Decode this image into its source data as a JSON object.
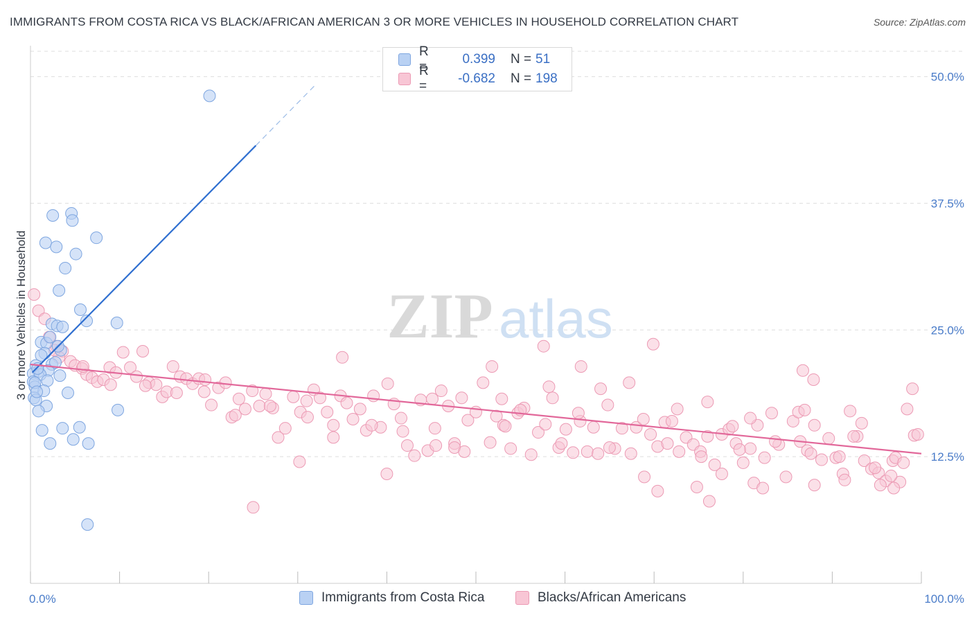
{
  "header": {
    "title": "IMMIGRANTS FROM COSTA RICA VS BLACK/AFRICAN AMERICAN 3 OR MORE VEHICLES IN HOUSEHOLD CORRELATION CHART",
    "source": "Source: ZipAtlas.com"
  },
  "watermark": {
    "zip": "ZIP",
    "atlas": "atlas"
  },
  "legend": {
    "rows": [
      {
        "r_label": "R =",
        "r_value": "0.399",
        "n_label": "N =",
        "n_value": "51"
      },
      {
        "r_label": "R =",
        "r_value": "-0.682",
        "n_label": "N =",
        "n_value": "198"
      }
    ]
  },
  "bottom_legend": {
    "series1": "Immigrants from Costa Rica",
    "series2": "Blacks/African Americans"
  },
  "colors": {
    "blue_fill": "#b9d1f3",
    "blue_stroke": "#7ea6e0",
    "blue_line": "#2f6fd0",
    "pink_fill": "#f8c6d5",
    "pink_stroke": "#ec9ab4",
    "pink_line": "#e2689a",
    "tick_text": "#4a7cc9",
    "grid": "#dddddd"
  },
  "chart_data": {
    "type": "scatter",
    "title": "IMMIGRANTS FROM COSTA RICA VS BLACK/AFRICAN AMERICAN 3 OR MORE VEHICLES IN HOUSEHOLD CORRELATION CHART",
    "xlabel": "",
    "ylabel": "3 or more Vehicles in Household",
    "xlim": [
      0,
      100
    ],
    "ylim": [
      0,
      52.5
    ],
    "x_tick_labels": [
      "0.0%",
      "100.0%"
    ],
    "y_ticks": [
      12.5,
      25.0,
      37.5,
      50.0
    ],
    "y_tick_labels": [
      "12.5%",
      "25.0%",
      "37.5%",
      "50.0%"
    ],
    "grid": true,
    "series": [
      {
        "name": "Immigrants from Costa Rica",
        "R": 0.399,
        "N": 51,
        "trend": {
          "x0": 0.2,
          "y0": 20.8,
          "x1": 25.3,
          "y1": 43.2,
          "dashed_to_x": 32.0,
          "dashed_to_y": 49.2
        },
        "points": [
          [
            20.1,
            48.1
          ],
          [
            2.5,
            36.3
          ],
          [
            4.6,
            36.5
          ],
          [
            4.7,
            35.8
          ],
          [
            7.4,
            34.1
          ],
          [
            1.7,
            33.6
          ],
          [
            2.9,
            33.2
          ],
          [
            5.1,
            32.5
          ],
          [
            3.9,
            31.1
          ],
          [
            3.2,
            28.9
          ],
          [
            5.6,
            27.0
          ],
          [
            6.3,
            25.9
          ],
          [
            9.7,
            25.7
          ],
          [
            2.4,
            25.6
          ],
          [
            3.0,
            25.4
          ],
          [
            3.6,
            25.3
          ],
          [
            1.2,
            23.8
          ],
          [
            1.8,
            23.7
          ],
          [
            2.2,
            24.3
          ],
          [
            3.4,
            23.0
          ],
          [
            1.6,
            22.7
          ],
          [
            0.6,
            21.5
          ],
          [
            2.4,
            21.6
          ],
          [
            0.9,
            20.9
          ],
          [
            2.0,
            21.0
          ],
          [
            0.3,
            20.7
          ],
          [
            1.1,
            20.6
          ],
          [
            0.8,
            21.2
          ],
          [
            3.3,
            20.5
          ],
          [
            1.9,
            20.0
          ],
          [
            0.3,
            19.9
          ],
          [
            0.5,
            19.4
          ],
          [
            1.5,
            19.0
          ],
          [
            4.2,
            18.8
          ],
          [
            0.4,
            18.3
          ],
          [
            0.6,
            18.1
          ],
          [
            1.8,
            17.5
          ],
          [
            0.9,
            17.0
          ],
          [
            9.8,
            17.1
          ],
          [
            1.3,
            15.1
          ],
          [
            3.6,
            15.3
          ],
          [
            5.5,
            15.4
          ],
          [
            2.2,
            13.8
          ],
          [
            4.8,
            14.2
          ],
          [
            6.5,
            13.8
          ],
          [
            6.4,
            5.8
          ],
          [
            0.5,
            19.8
          ],
          [
            1.2,
            22.5
          ],
          [
            2.8,
            21.8
          ],
          [
            0.7,
            18.9
          ],
          [
            3.1,
            23.4
          ]
        ]
      },
      {
        "name": "Blacks/African Americans",
        "R": -0.682,
        "N": 198,
        "trend": {
          "x0": 0.0,
          "y0": 21.6,
          "x1": 100.0,
          "y1": 12.8
        },
        "points": [
          [
            0.4,
            28.5
          ],
          [
            0.9,
            26.9
          ],
          [
            1.6,
            26.1
          ],
          [
            2.1,
            24.3
          ],
          [
            2.9,
            23.4
          ],
          [
            3.6,
            22.9
          ],
          [
            3.2,
            22.3
          ],
          [
            4.5,
            21.9
          ],
          [
            5.0,
            21.5
          ],
          [
            5.8,
            21.2
          ],
          [
            6.3,
            20.6
          ],
          [
            6.9,
            20.3
          ],
          [
            7.5,
            19.9
          ],
          [
            8.2,
            20.1
          ],
          [
            8.9,
            21.3
          ],
          [
            9.6,
            20.8
          ],
          [
            10.4,
            22.8
          ],
          [
            11.2,
            21.3
          ],
          [
            11.9,
            20.4
          ],
          [
            12.6,
            22.9
          ],
          [
            13.3,
            19.8
          ],
          [
            14.1,
            19.6
          ],
          [
            14.8,
            18.4
          ],
          [
            15.3,
            18.9
          ],
          [
            16.0,
            21.4
          ],
          [
            16.8,
            20.4
          ],
          [
            17.5,
            20.2
          ],
          [
            18.2,
            19.7
          ],
          [
            18.9,
            20.2
          ],
          [
            19.6,
            20.1
          ],
          [
            20.3,
            17.6
          ],
          [
            21.1,
            19.3
          ],
          [
            21.9,
            19.8
          ],
          [
            22.6,
            16.4
          ],
          [
            23.4,
            18.2
          ],
          [
            24.1,
            17.2
          ],
          [
            24.9,
            19.0
          ],
          [
            25.7,
            17.5
          ],
          [
            26.4,
            18.7
          ],
          [
            27.2,
            17.3
          ],
          [
            27.8,
            14.4
          ],
          [
            28.6,
            15.3
          ],
          [
            29.5,
            18.4
          ],
          [
            30.3,
            16.9
          ],
          [
            31.1,
            16.4
          ],
          [
            31.8,
            19.1
          ],
          [
            32.5,
            18.3
          ],
          [
            33.3,
            16.9
          ],
          [
            34.0,
            15.6
          ],
          [
            34.8,
            18.5
          ],
          [
            35.5,
            17.8
          ],
          [
            36.2,
            16.2
          ],
          [
            37.0,
            17.2
          ],
          [
            37.7,
            15.1
          ],
          [
            38.5,
            18.5
          ],
          [
            39.3,
            15.4
          ],
          [
            40.1,
            19.7
          ],
          [
            40.8,
            17.7
          ],
          [
            41.6,
            16.3
          ],
          [
            42.3,
            13.6
          ],
          [
            43.1,
            12.6
          ],
          [
            43.8,
            18.1
          ],
          [
            44.6,
            13.1
          ],
          [
            45.4,
            15.3
          ],
          [
            46.1,
            19.0
          ],
          [
            46.9,
            17.5
          ],
          [
            47.6,
            13.8
          ],
          [
            48.4,
            18.3
          ],
          [
            49.1,
            16.1
          ],
          [
            50.0,
            16.9
          ],
          [
            50.8,
            19.8
          ],
          [
            51.6,
            13.9
          ],
          [
            52.3,
            16.5
          ],
          [
            53.1,
            15.6
          ],
          [
            53.9,
            13.3
          ],
          [
            54.7,
            16.8
          ],
          [
            55.4,
            17.3
          ],
          [
            56.2,
            12.7
          ],
          [
            57.0,
            14.9
          ],
          [
            57.8,
            15.7
          ],
          [
            58.6,
            18.3
          ],
          [
            59.3,
            13.4
          ],
          [
            60.1,
            15.2
          ],
          [
            60.9,
            12.9
          ],
          [
            61.7,
            16.0
          ],
          [
            62.5,
            13.0
          ],
          [
            63.2,
            15.4
          ],
          [
            64.0,
            19.2
          ],
          [
            64.8,
            17.6
          ],
          [
            65.6,
            13.3
          ],
          [
            66.4,
            15.3
          ],
          [
            67.2,
            19.8
          ],
          [
            68.0,
            15.4
          ],
          [
            68.8,
            16.2
          ],
          [
            69.6,
            14.7
          ],
          [
            70.4,
            13.5
          ],
          [
            71.2,
            15.9
          ],
          [
            72.0,
            16.0
          ],
          [
            72.8,
            13.0
          ],
          [
            73.6,
            14.4
          ],
          [
            74.4,
            13.7
          ],
          [
            75.2,
            13.0
          ],
          [
            76.0,
            14.5
          ],
          [
            76.8,
            11.7
          ],
          [
            77.6,
            14.7
          ],
          [
            78.4,
            15.2
          ],
          [
            79.2,
            13.8
          ],
          [
            80.0,
            11.9
          ],
          [
            80.8,
            13.3
          ],
          [
            81.6,
            15.6
          ],
          [
            82.4,
            12.4
          ],
          [
            83.2,
            16.8
          ],
          [
            84.0,
            13.7
          ],
          [
            84.8,
            10.5
          ],
          [
            85.6,
            16.0
          ],
          [
            86.4,
            14.0
          ],
          [
            87.2,
            13.1
          ],
          [
            88.0,
            15.6
          ],
          [
            88.8,
            12.2
          ],
          [
            89.6,
            14.3
          ],
          [
            90.4,
            12.4
          ],
          [
            91.2,
            10.8
          ],
          [
            92.0,
            17.0
          ],
          [
            92.8,
            14.5
          ],
          [
            93.6,
            12.1
          ],
          [
            94.4,
            11.3
          ],
          [
            95.2,
            10.9
          ],
          [
            96.0,
            10.1
          ],
          [
            96.8,
            12.1
          ],
          [
            97.6,
            10.0
          ],
          [
            98.4,
            17.2
          ],
          [
            99.2,
            14.6
          ],
          [
            45.5,
            13.6
          ],
          [
            47.6,
            13.4
          ],
          [
            52.9,
            18.2
          ],
          [
            55.0,
            17.1
          ],
          [
            58.2,
            19.4
          ],
          [
            61.5,
            16.8
          ],
          [
            65.0,
            13.4
          ],
          [
            68.9,
            10.5
          ],
          [
            70.4,
            9.1
          ],
          [
            72.6,
            17.2
          ],
          [
            76.0,
            17.9
          ],
          [
            77.6,
            10.8
          ],
          [
            78.8,
            15.5
          ],
          [
            80.8,
            16.3
          ],
          [
            81.2,
            9.9
          ],
          [
            82.2,
            9.4
          ],
          [
            86.2,
            16.9
          ],
          [
            86.9,
            17.1
          ],
          [
            88.0,
            9.7
          ],
          [
            91.4,
            10.2
          ],
          [
            93.3,
            15.8
          ],
          [
            94.8,
            11.4
          ],
          [
            97.1,
            12.4
          ],
          [
            99.0,
            19.2
          ],
          [
            25.0,
            7.5
          ],
          [
            30.2,
            12.0
          ],
          [
            40.0,
            10.8
          ],
          [
            35.0,
            22.3
          ],
          [
            51.8,
            21.4
          ],
          [
            57.6,
            23.4
          ],
          [
            61.8,
            21.4
          ],
          [
            69.9,
            23.6
          ],
          [
            86.7,
            21.0
          ],
          [
            87.9,
            20.1
          ],
          [
            74.8,
            9.5
          ],
          [
            76.2,
            8.1
          ],
          [
            90.8,
            12.5
          ],
          [
            95.4,
            9.7
          ],
          [
            96.9,
            9.4
          ],
          [
            99.6,
            14.7
          ],
          [
            34.0,
            14.4
          ],
          [
            38.3,
            15.6
          ],
          [
            41.8,
            15.0
          ],
          [
            45.1,
            18.2
          ],
          [
            48.7,
            13.0
          ],
          [
            53.3,
            15.5
          ],
          [
            59.6,
            13.8
          ],
          [
            63.7,
            12.8
          ],
          [
            67.4,
            12.8
          ],
          [
            71.5,
            13.8
          ],
          [
            75.3,
            12.5
          ],
          [
            79.6,
            13.2
          ],
          [
            83.6,
            14.0
          ],
          [
            87.6,
            12.8
          ],
          [
            92.4,
            14.5
          ],
          [
            96.6,
            10.6
          ],
          [
            98.0,
            11.9
          ],
          [
            2.7,
            23.0
          ],
          [
            5.9,
            21.4
          ],
          [
            9.0,
            19.6
          ],
          [
            12.9,
            19.5
          ],
          [
            16.4,
            18.8
          ],
          [
            19.5,
            18.9
          ],
          [
            23.0,
            16.6
          ],
          [
            26.9,
            17.5
          ],
          [
            31.0,
            18.0
          ]
        ]
      }
    ]
  }
}
